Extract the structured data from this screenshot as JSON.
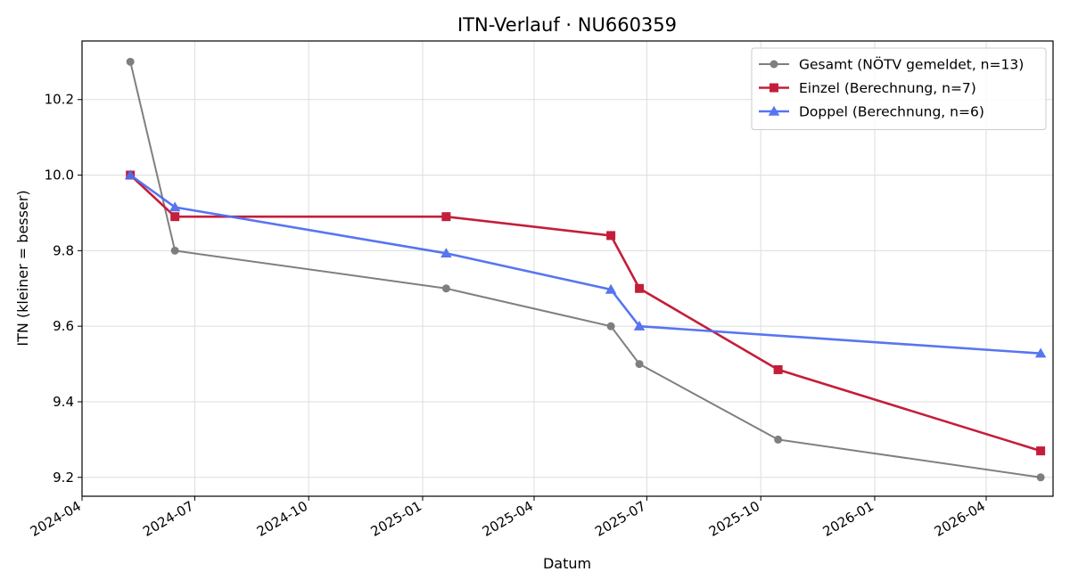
{
  "chart_data": {
    "type": "line",
    "title": "ITN-Verlauf · NU660359",
    "xlabel": "Datum",
    "ylabel": "ITN  (kleiner = besser)",
    "x_type": "date",
    "xlim": [
      "2024-04-01",
      "2026-05-25"
    ],
    "ylim": [
      9.15,
      10.355
    ],
    "x_ticks": [
      {
        "date": "2024-04-01",
        "label": "2024-04"
      },
      {
        "date": "2024-07-01",
        "label": "2024-07"
      },
      {
        "date": "2024-10-01",
        "label": "2024-10"
      },
      {
        "date": "2025-01-01",
        "label": "2025-01"
      },
      {
        "date": "2025-04-01",
        "label": "2025-04"
      },
      {
        "date": "2025-07-01",
        "label": "2025-07"
      },
      {
        "date": "2025-10-01",
        "label": "2025-10"
      },
      {
        "date": "2026-01-01",
        "label": "2026-01"
      },
      {
        "date": "2026-04-01",
        "label": "2026-04"
      }
    ],
    "y_ticks": [
      {
        "value": 9.2,
        "label": "9.2"
      },
      {
        "value": 9.4,
        "label": "9.4"
      },
      {
        "value": 9.6,
        "label": "9.6"
      },
      {
        "value": 9.8,
        "label": "9.8"
      },
      {
        "value": 10.0,
        "label": "10.0"
      },
      {
        "value": 10.2,
        "label": "10.2"
      }
    ],
    "grid": true,
    "legend_position": "top-right",
    "series": [
      {
        "name": "Gesamt (NÖTV gemeldet, n=13)",
        "color": "#555555",
        "marker": "circle",
        "x": [
          "2024-05-10",
          "2024-06-15",
          "2025-01-20",
          "2025-06-02",
          "2025-06-25",
          "2025-10-15",
          "2026-05-15"
        ],
        "y": [
          10.3,
          9.8,
          9.7,
          9.6,
          9.5,
          9.3,
          9.2
        ]
      },
      {
        "name": "Einzel (Berechnung, n=7)",
        "color": "#c41e3a",
        "marker": "square",
        "x": [
          "2024-05-10",
          "2024-06-15",
          "2025-01-20",
          "2025-06-02",
          "2025-06-25",
          "2025-10-15",
          "2026-05-15"
        ],
        "y": [
          10.0,
          9.89,
          9.89,
          9.84,
          9.7,
          9.485,
          9.27
        ]
      },
      {
        "name": "Doppel (Berechnung, n=6)",
        "color": "#4f6ef0",
        "marker": "triangle",
        "x": [
          "2024-05-10",
          "2024-06-15",
          "2025-01-20",
          "2025-06-02",
          "2025-06-25",
          "2026-05-15"
        ],
        "y": [
          10.0,
          9.915,
          9.793,
          9.697,
          9.6,
          9.528
        ]
      }
    ]
  }
}
